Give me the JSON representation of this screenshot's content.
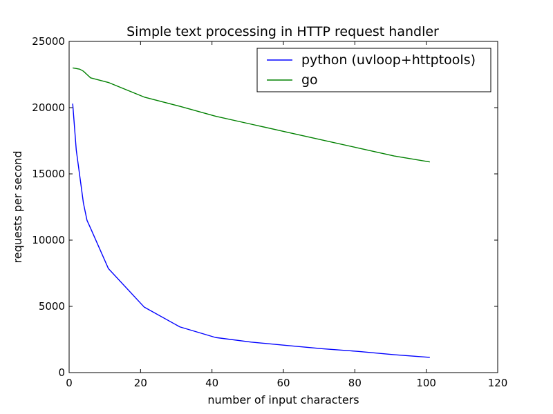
{
  "chart_data": {
    "type": "line",
    "title": "Simple text processing in HTTP request handler",
    "xlabel": "number of input characters",
    "ylabel": "requests per second",
    "xlim": [
      0,
      120
    ],
    "ylim": [
      0,
      25000
    ],
    "xticks": [
      0,
      20,
      40,
      60,
      80,
      100,
      120
    ],
    "yticks": [
      0,
      5000,
      10000,
      15000,
      20000,
      25000
    ],
    "xtick_labels": [
      "0",
      "20",
      "40",
      "60",
      "80",
      "100",
      "120"
    ],
    "ytick_labels": [
      "0",
      "5000",
      "10000",
      "15000",
      "20000",
      "25000"
    ],
    "grid": false,
    "legend_position": "top-right",
    "series": [
      {
        "name": "python (uvloop+httptools)",
        "color": "#0000ff",
        "x": [
          1,
          2,
          3,
          4,
          5,
          6,
          11,
          21,
          31,
          41,
          51,
          61,
          71,
          81,
          91,
          101
        ],
        "y": [
          20300,
          16800,
          14800,
          12800,
          11500,
          10900,
          7850,
          4950,
          3450,
          2650,
          2300,
          2050,
          1800,
          1600,
          1350,
          1150
        ]
      },
      {
        "name": "go",
        "color": "#008000",
        "x": [
          1,
          2,
          3,
          4,
          5,
          6,
          11,
          21,
          31,
          41,
          51,
          61,
          71,
          81,
          91,
          101
        ],
        "y": [
          23000,
          22950,
          22900,
          22750,
          22500,
          22250,
          21900,
          20800,
          20100,
          19350,
          18750,
          18150,
          17550,
          16950,
          16350,
          15900
        ]
      }
    ]
  }
}
